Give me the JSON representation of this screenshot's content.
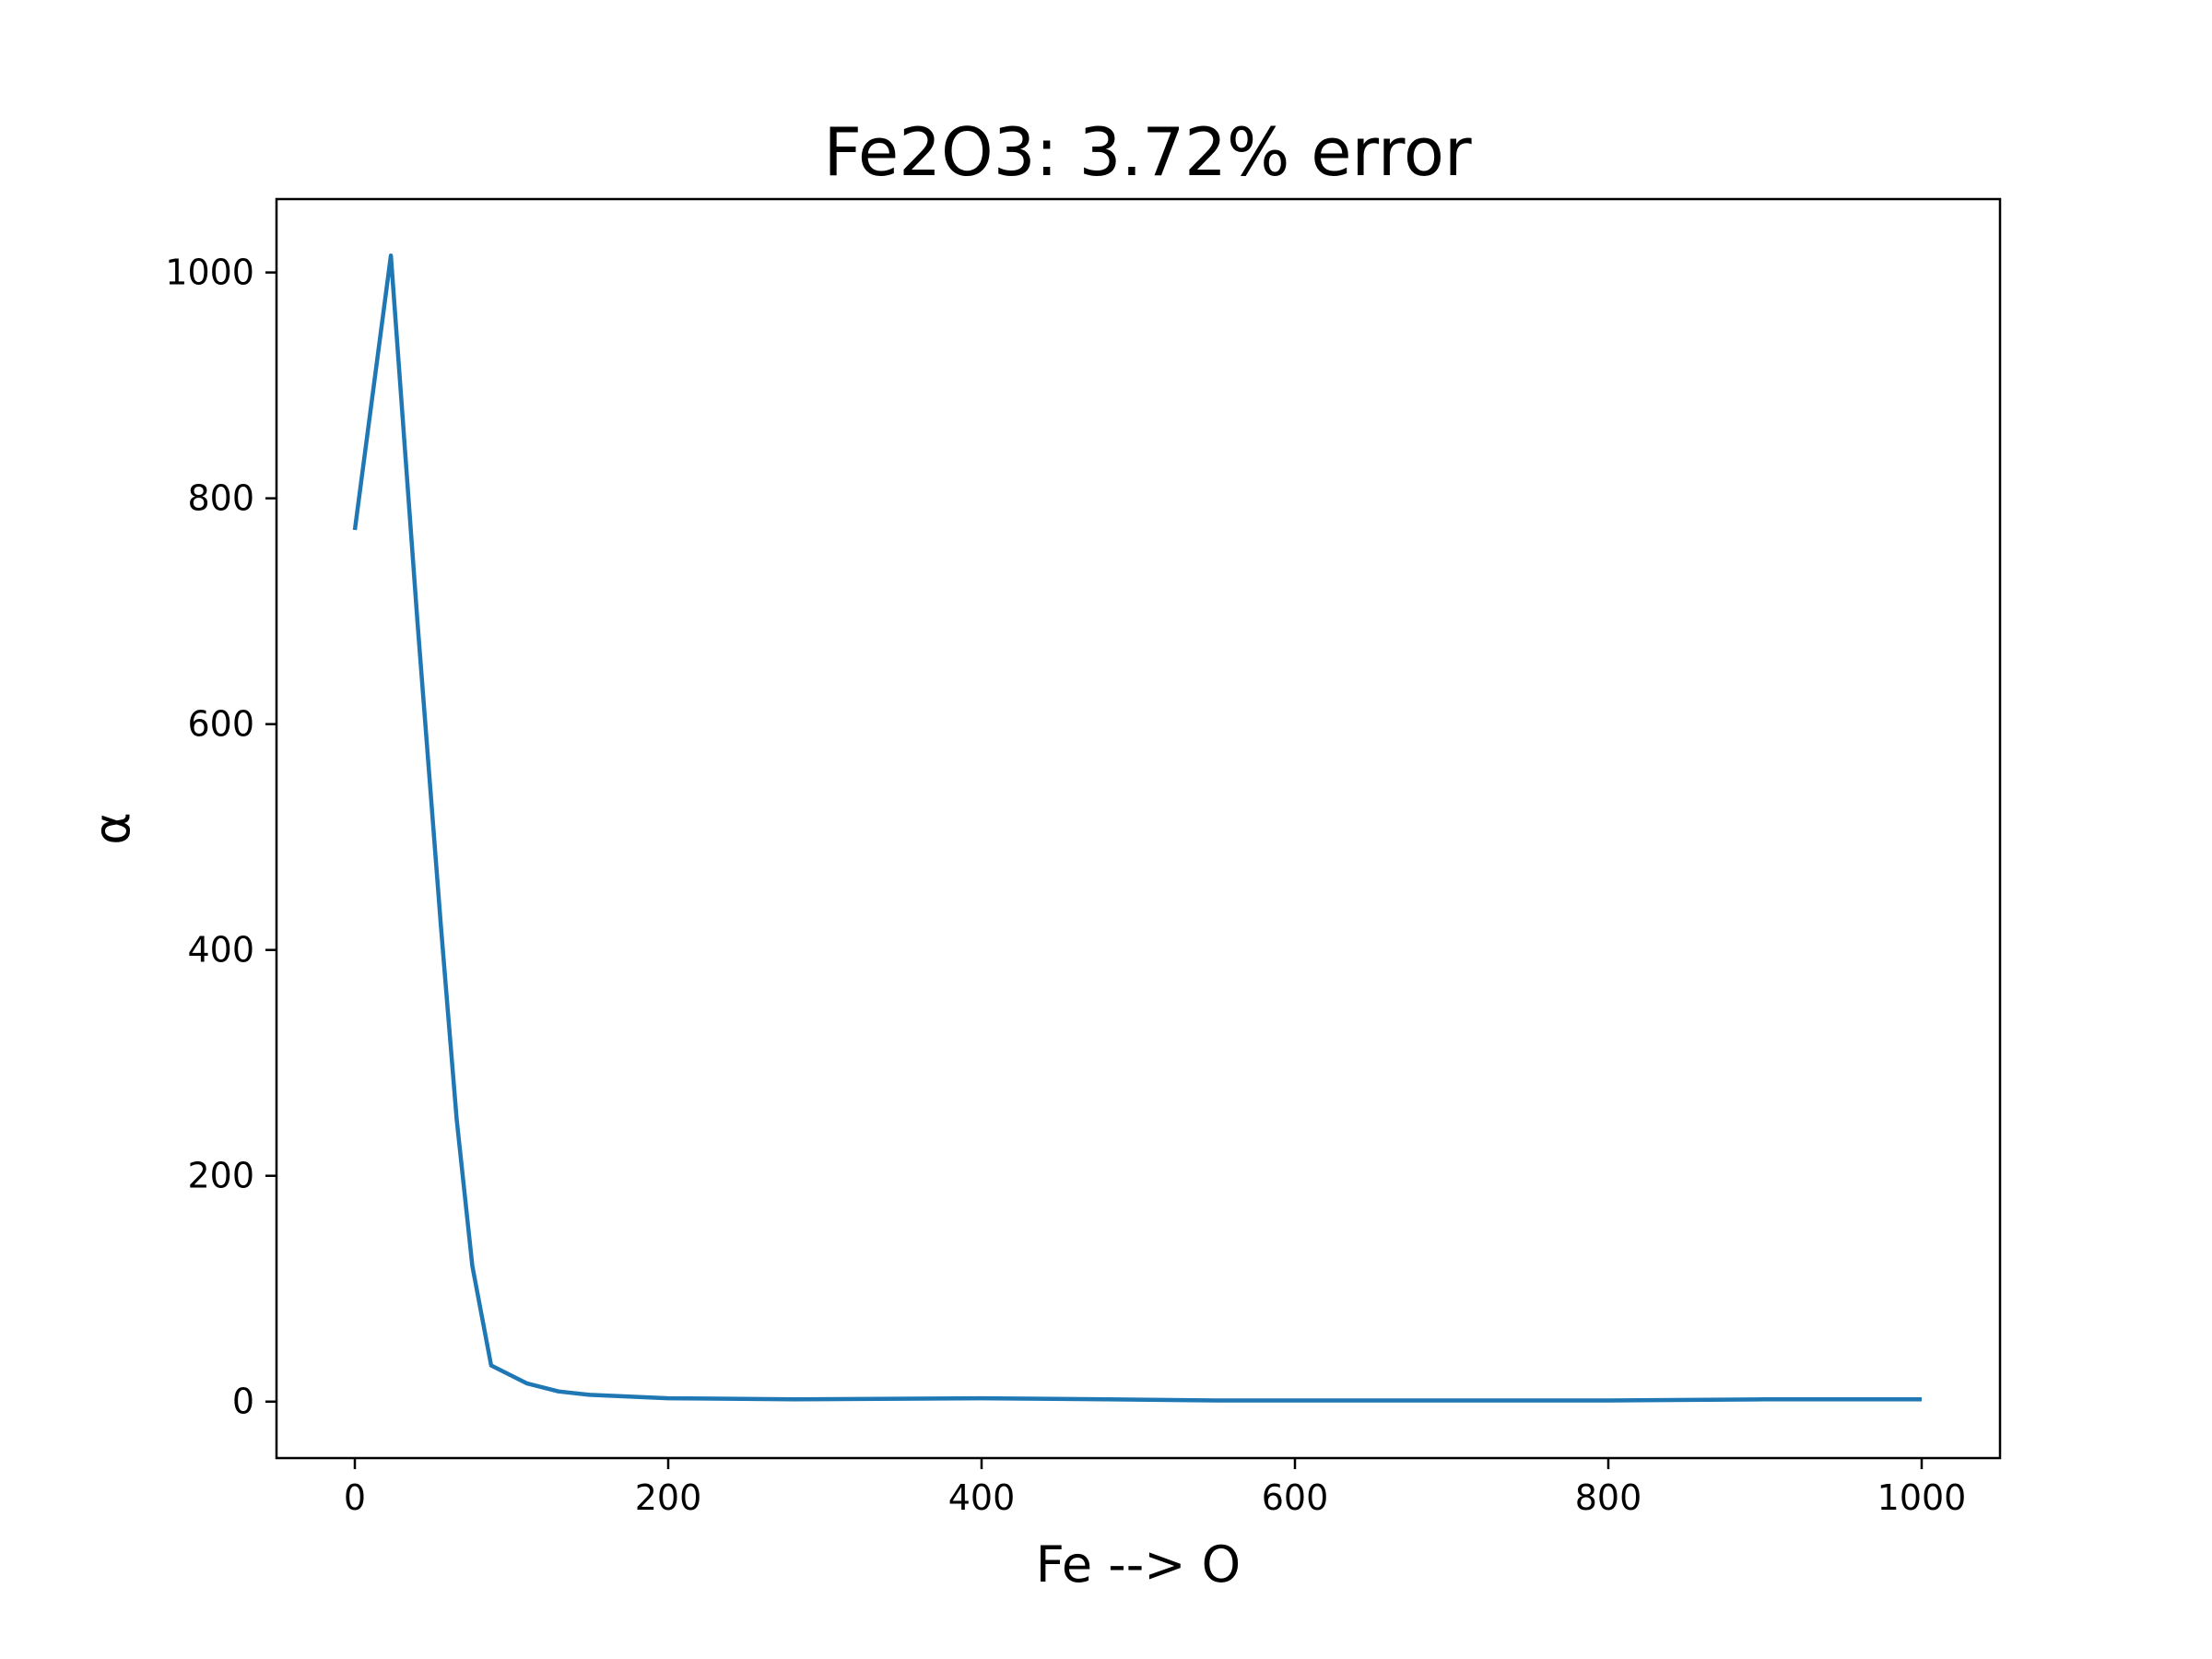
{
  "chart_data": {
    "type": "line",
    "title": "Fe2O3: 3.72% error",
    "xlabel": "Fe --> O",
    "ylabel": "α",
    "xlim": [
      -50,
      1050
    ],
    "ylim": [
      -50,
      1065
    ],
    "xticks": [
      0,
      200,
      400,
      600,
      800,
      1000
    ],
    "yticks": [
      0,
      200,
      400,
      600,
      800,
      1000
    ],
    "xtick_labels": [
      "0",
      "200",
      "400",
      "600",
      "800",
      "1000"
    ],
    "ytick_labels": [
      "0",
      "200",
      "400",
      "600",
      "800",
      "1000"
    ],
    "grid": false,
    "legend": "none",
    "series": [
      {
        "color": "#1f77b4",
        "x": [
          0,
          23,
          40,
          55,
          65,
          75,
          87,
          110,
          130,
          150,
          200,
          280,
          400,
          480,
          550,
          620,
          700,
          800,
          900,
          1000
        ],
        "y": [
          772,
          1015,
          690,
          420,
          250,
          120,
          32,
          16,
          9,
          6,
          3,
          2,
          3,
          2,
          1,
          1,
          1,
          1,
          2,
          2
        ]
      }
    ]
  }
}
